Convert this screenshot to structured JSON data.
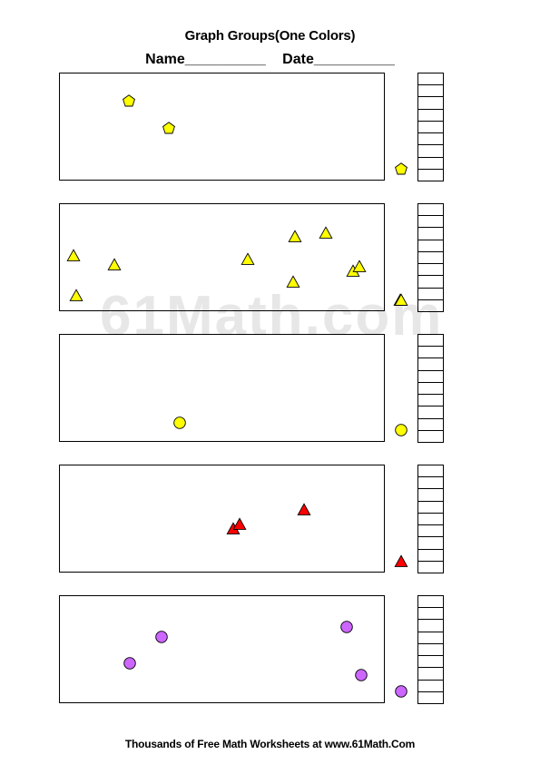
{
  "header": {
    "title": "Graph Groups(One Colors)",
    "name_label": "Name__________",
    "date_label": "Date__________"
  },
  "watermark": "61Math.com",
  "footer": "Thousands of Free Math Worksheets at www.61Math.Com",
  "groups": [
    {
      "shape": "pentagon-icon",
      "color": "#ffff00",
      "count": 2,
      "scale_cells": 9
    },
    {
      "shape": "triangle-icon",
      "color": "#ffff00",
      "count": 10,
      "scale_cells": 9
    },
    {
      "shape": "circle-icon",
      "color": "#ffff00",
      "count": 1,
      "scale_cells": 9
    },
    {
      "shape": "triangle-icon",
      "color": "#ff0000",
      "count": 3,
      "scale_cells": 9
    },
    {
      "shape": "circle-icon",
      "color": "#cc66ff",
      "count": 4,
      "scale_cells": 9
    }
  ]
}
